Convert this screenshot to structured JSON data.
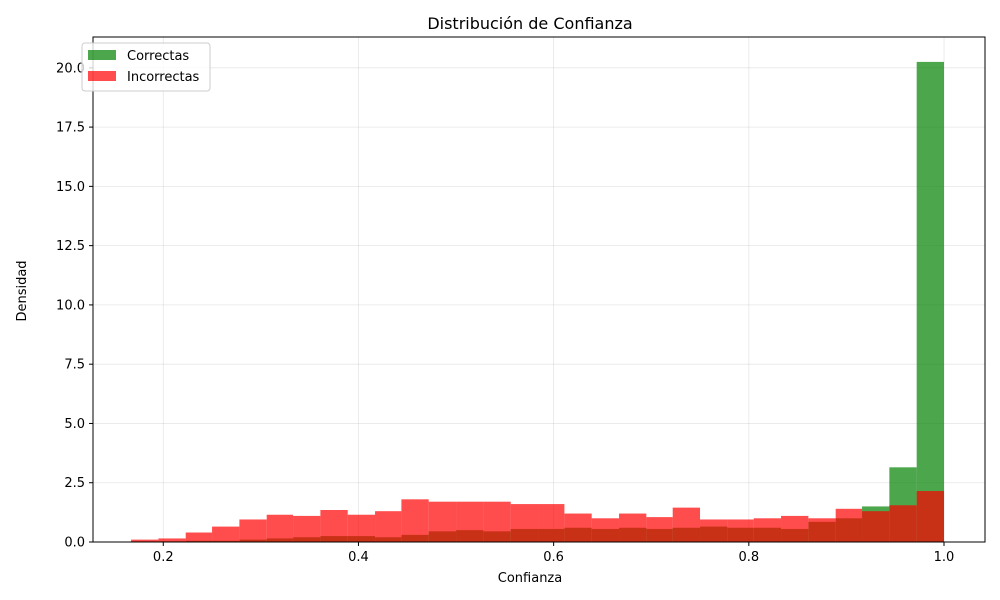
{
  "chart_data": {
    "type": "histogram",
    "title": "Distribución de Confianza",
    "xlabel": "Confianza",
    "ylabel": "Densidad",
    "xlim": [
      0.128,
      1.042
    ],
    "ylim": [
      0,
      21.3
    ],
    "xticks": [
      0.2,
      0.4,
      0.6,
      0.8,
      1.0
    ],
    "xtick_labels": [
      "0.2",
      "0.4",
      "0.6",
      "0.8",
      "1.0"
    ],
    "yticks": [
      0,
      2.5,
      5,
      7.5,
      10,
      12.5,
      15,
      17.5,
      20
    ],
    "ytick_labels": [
      "0.0",
      "2.5",
      "5.0",
      "7.5",
      "10.0",
      "12.5",
      "15.0",
      "17.5",
      "20.0"
    ],
    "grid": true,
    "legend_position": "top-left",
    "series": [
      {
        "name": "Correctas",
        "color": "#008000",
        "alpha": 0.7,
        "bin_edges": [
          0.167,
          0.195,
          0.223,
          0.25,
          0.278,
          0.306,
          0.333,
          0.361,
          0.389,
          0.417,
          0.444,
          0.472,
          0.5,
          0.528,
          0.556,
          0.584,
          0.611,
          0.639,
          0.667,
          0.695,
          0.722,
          0.75,
          0.778,
          0.805,
          0.833,
          0.861,
          0.889,
          0.916,
          0.944,
          0.972,
          1.0
        ],
        "values": [
          0.03,
          0.03,
          0.05,
          0.05,
          0.1,
          0.15,
          0.2,
          0.25,
          0.25,
          0.2,
          0.3,
          0.45,
          0.5,
          0.45,
          0.55,
          0.55,
          0.6,
          0.55,
          0.6,
          0.55,
          0.6,
          0.65,
          0.6,
          0.6,
          0.55,
          0.85,
          1.0,
          1.5,
          3.15,
          20.25
        ]
      },
      {
        "name": "Incorrectas",
        "color": "#ff0000",
        "alpha": 0.7,
        "bin_edges": [
          0.167,
          0.195,
          0.223,
          0.25,
          0.278,
          0.306,
          0.333,
          0.361,
          0.389,
          0.417,
          0.444,
          0.472,
          0.5,
          0.528,
          0.556,
          0.584,
          0.611,
          0.639,
          0.667,
          0.695,
          0.722,
          0.75,
          0.778,
          0.805,
          0.833,
          0.861,
          0.889,
          0.916,
          0.944,
          0.972,
          1.0
        ],
        "values": [
          0.1,
          0.15,
          0.4,
          0.65,
          0.95,
          1.15,
          1.1,
          1.35,
          1.15,
          1.3,
          1.8,
          1.7,
          1.7,
          1.7,
          1.6,
          1.6,
          1.2,
          1.0,
          1.2,
          1.05,
          1.45,
          0.95,
          0.95,
          1.0,
          1.1,
          1.0,
          1.4,
          1.3,
          1.55,
          2.15
        ]
      }
    ]
  }
}
